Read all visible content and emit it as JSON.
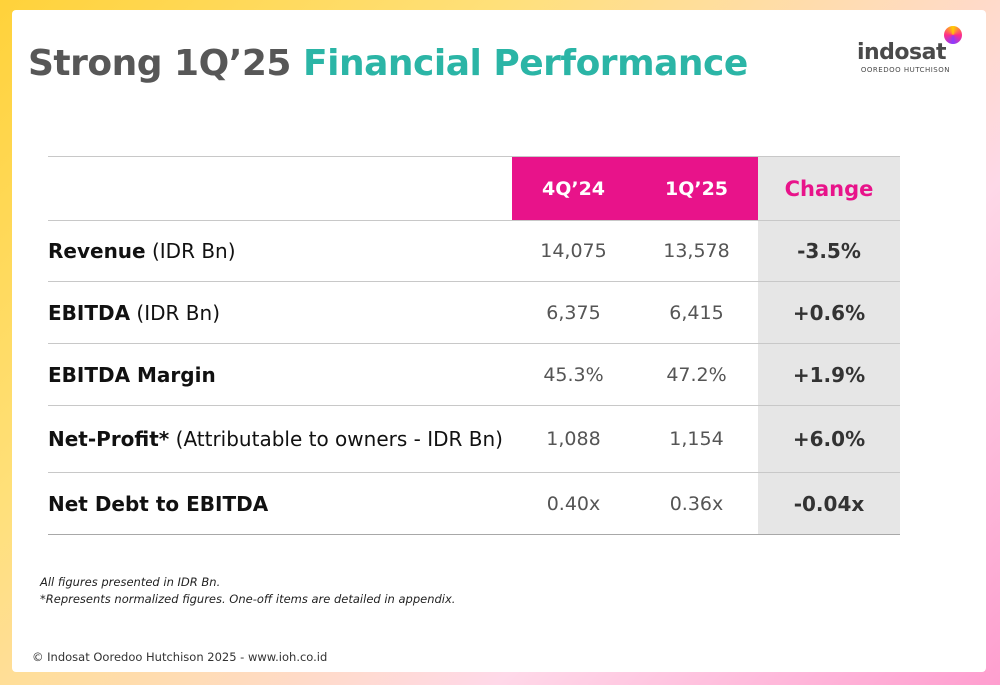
{
  "title": {
    "part1": "Strong 1Q’25",
    "part2": "Financial Performance"
  },
  "logo": {
    "word": "indosat",
    "sub": "OOREDOO HUTCHISON"
  },
  "table": {
    "headers": {
      "period1": "4Q’24",
      "period2": "1Q’25",
      "change": "Change"
    },
    "rows": [
      {
        "label_bold": "Revenue",
        "label_rest": " (IDR Bn)",
        "v1": "14,075",
        "v2": "13,578",
        "change": "-3.5%"
      },
      {
        "label_bold": "EBITDA",
        "label_rest": " (IDR Bn)",
        "v1": "6,375",
        "v2": "6,415",
        "change": "+0.6%"
      },
      {
        "label_bold": "EBITDA Margin",
        "label_rest": "",
        "v1": "45.3%",
        "v2": "47.2%",
        "change": "+1.9%"
      },
      {
        "label_bold": "Net-Profit*",
        "label_rest": " (Attributable to owners - IDR Bn)",
        "v1": "1,088",
        "v2": "1,154",
        "change": "+6.0%"
      },
      {
        "label_bold": "Net Debt to EBITDA",
        "label_rest": "",
        "v1": "0.40x",
        "v2": "0.36x",
        "change": "-0.04x"
      }
    ]
  },
  "notes": [
    "All figures presented in IDR Bn.",
    "*Represents normalized figures. One-off items are detailed in appendix."
  ],
  "footer": "© Indosat Ooredoo Hutchison 2025 - www.ioh.co.id",
  "colors": {
    "magenta": "#e8138a",
    "teal": "#2bb5a6",
    "gray_title": "#575757",
    "change_bg": "#e6e6e6"
  }
}
